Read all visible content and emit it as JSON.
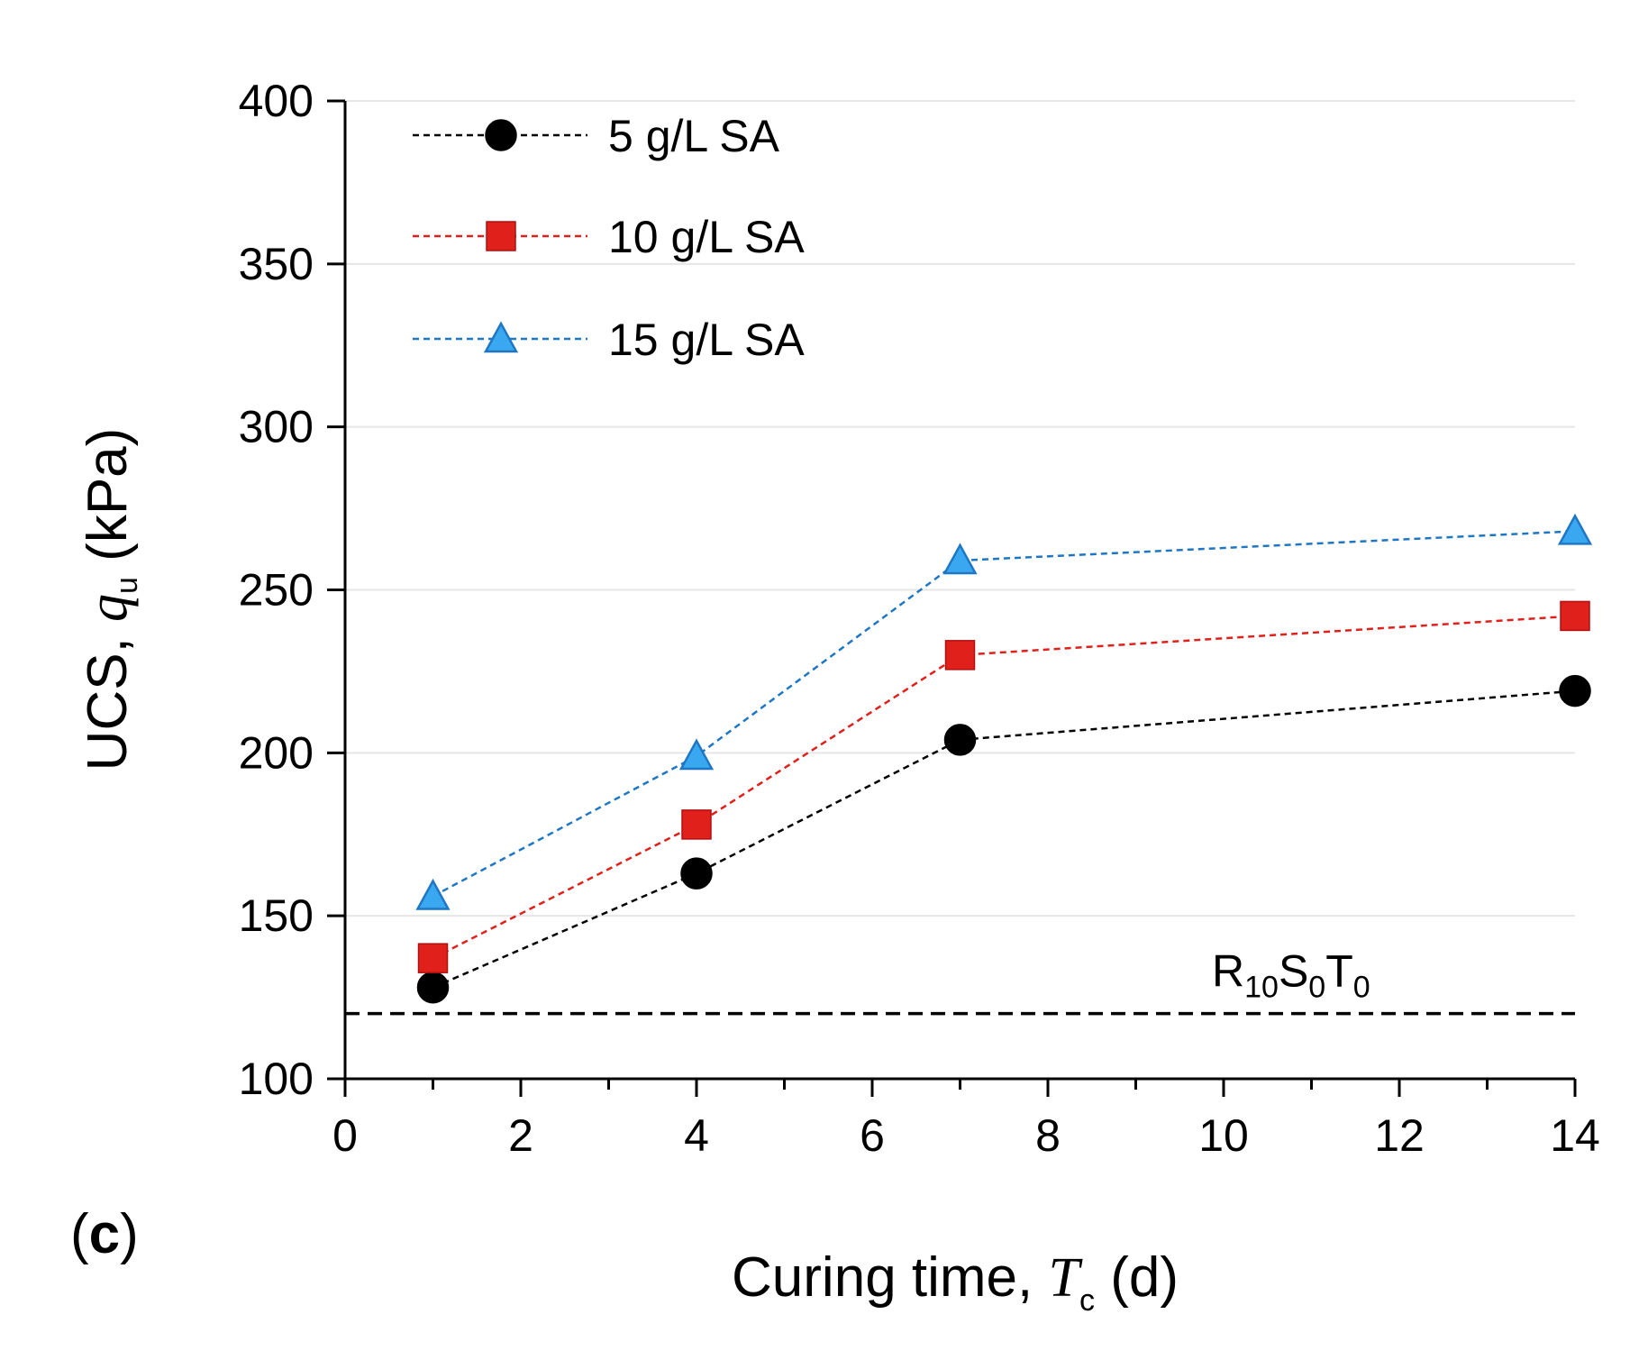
{
  "chart_data": {
    "type": "line",
    "panel_label": {
      "open": "(",
      "letter": "c",
      "close": ")"
    },
    "xlabel": {
      "prefix": "Curing time, ",
      "symbol": "T",
      "subscript": "c",
      "unit": " (d)"
    },
    "ylabel": {
      "prefix": "UCS, ",
      "symbol": "q",
      "subscript": "u",
      "unit": " (kPa)"
    },
    "xlim": [
      0,
      14
    ],
    "ylim": [
      100,
      400
    ],
    "x_ticks": [
      0,
      2,
      4,
      6,
      8,
      10,
      12,
      14
    ],
    "y_ticks": [
      100,
      150,
      200,
      250,
      300,
      350,
      400
    ],
    "x_tick_labels": [
      "0",
      "2",
      "4",
      "6",
      "8",
      "10",
      "12",
      "14"
    ],
    "y_tick_labels": [
      "100",
      "150",
      "200",
      "250",
      "300",
      "350",
      "400"
    ],
    "x_minor_step": 1,
    "grid": "horizontal",
    "legend_position": "top-left",
    "x": [
      1,
      4,
      7,
      14
    ],
    "series": [
      {
        "name": "5 g/L SA",
        "color": "#000000",
        "marker": "circle",
        "values": [
          128,
          163,
          204,
          219
        ]
      },
      {
        "name": "10 g/L SA",
        "color": "#e0201a",
        "marker": "square",
        "values": [
          137,
          178,
          230,
          242
        ]
      },
      {
        "name": "15 g/L SA",
        "color": "#1f77c4",
        "marker": "triangle",
        "values": [
          156,
          199,
          259,
          268
        ]
      }
    ],
    "reference_line": {
      "value": 120,
      "color": "#000000",
      "label": [
        {
          "text": "R",
          "sub": "10"
        },
        {
          "text": "S",
          "sub": "0"
        },
        {
          "text": "T",
          "sub": "0"
        }
      ]
    }
  }
}
